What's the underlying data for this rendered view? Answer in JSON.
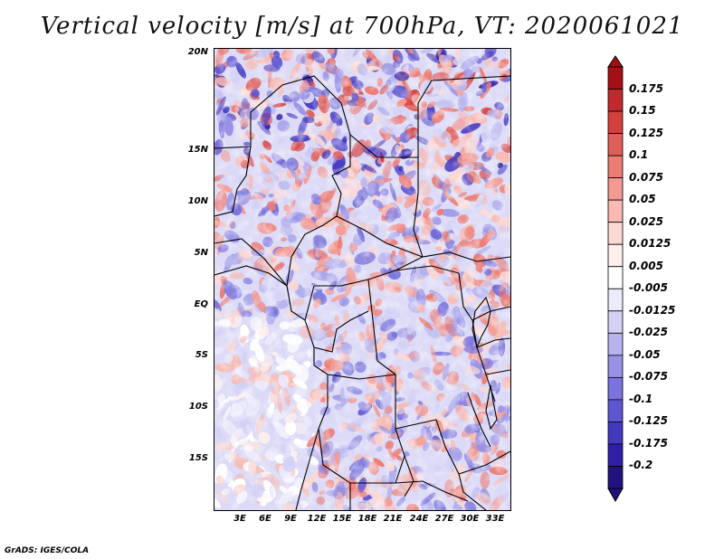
{
  "title": "Vertical velocity [m/s] at 700hPa, VT: 2020061021",
  "map": {
    "lat_labels": [
      "20N",
      "15N",
      "10N",
      "5N",
      "EQ",
      "5S",
      "10S",
      "15S"
    ],
    "lon_labels": [
      "3E",
      "6E",
      "9E",
      "12E",
      "15E",
      "18E",
      "21E",
      "24E",
      "27E",
      "30E",
      "33E"
    ]
  },
  "colorbar": {
    "labels": [
      "0.175",
      "0.15",
      "0.125",
      "0.1",
      "0.075",
      "0.05",
      "0.025",
      "0.0125",
      "0.005",
      "-0.005",
      "-0.0125",
      "-0.025",
      "-0.05",
      "-0.075",
      "-0.1",
      "-0.125",
      "-0.175",
      "-0.2"
    ],
    "colors": [
      "#a50f15",
      "#c12a2d",
      "#d4403e",
      "#e15e58",
      "#ec7d75",
      "#f39b92",
      "#f8bab3",
      "#fcd8d3",
      "#feefec",
      "#ffffff",
      "#ecebfb",
      "#d3d1f5",
      "#b6b3ee",
      "#9792e6",
      "#7a74dc",
      "#5e56d0",
      "#4338c0",
      "#2f1ea8",
      "#22127f"
    ]
  },
  "footer": "GrADS: IGES/COLA"
}
